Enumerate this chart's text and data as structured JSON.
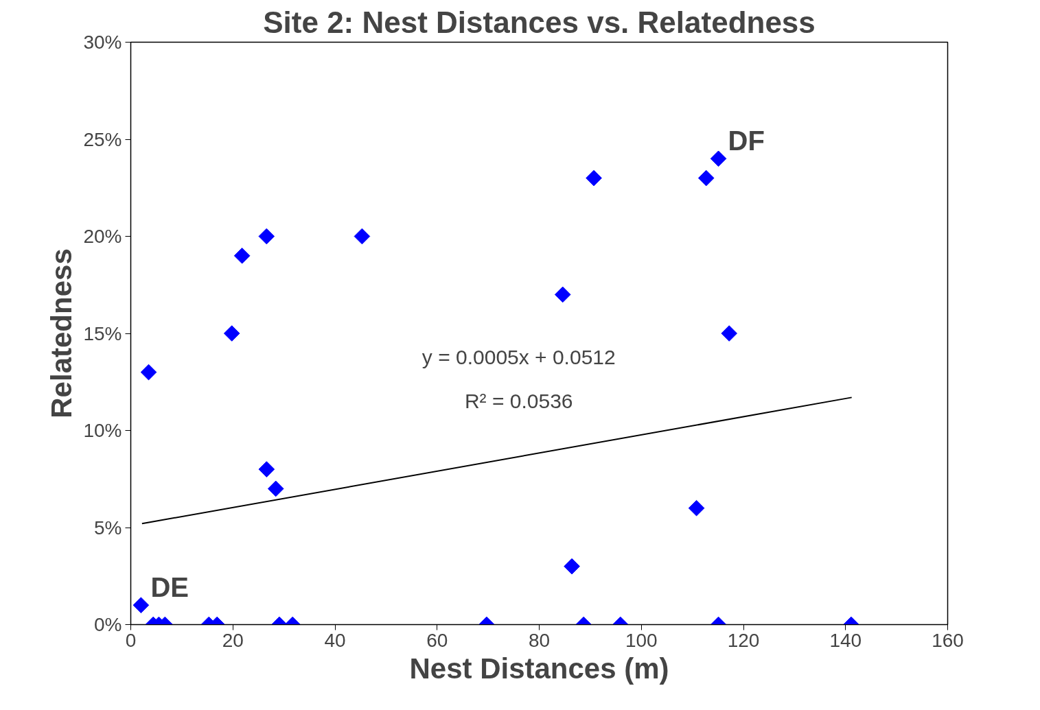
{
  "chart_data": {
    "type": "scatter",
    "title": "Site 2: Nest Distances vs. Relatedness",
    "xlabel": "Nest Distances (m)",
    "ylabel": "Relatedness",
    "grid": false,
    "xlim": [
      0,
      160
    ],
    "xticks": [
      0,
      20,
      40,
      60,
      80,
      100,
      120,
      140,
      160
    ],
    "ylim": [
      0,
      0.3
    ],
    "yticks": [
      {
        "value": 0,
        "label": "0%"
      },
      {
        "value": 0.05,
        "label": "5%"
      },
      {
        "value": 0.1,
        "label": "10%"
      },
      {
        "value": 0.15,
        "label": "15%"
      },
      {
        "value": 0.2,
        "label": "20%"
      },
      {
        "value": 0.25,
        "label": "25%"
      },
      {
        "value": 0.3,
        "label": "30%"
      }
    ],
    "series": [
      {
        "marker": "diamond",
        "color": "#0000ff",
        "x": [
          2.0,
          3.5,
          4.4,
          5.5,
          6.7,
          15.3,
          16.9,
          19.8,
          21.8,
          26.6,
          26.6,
          28.4,
          29.1,
          31.7,
          45.3,
          69.7,
          84.6,
          86.4,
          88.7,
          90.7,
          95.9,
          110.8,
          112.7,
          115.1,
          115.1,
          117.2,
          141.1
        ],
        "values": [
          0.01,
          0.13,
          0,
          0,
          0,
          0,
          0,
          0.15,
          0.19,
          0.2,
          0.08,
          0.07,
          0,
          0,
          0.2,
          0,
          0.17,
          0.03,
          0,
          0.23,
          0,
          0.06,
          0.23,
          0.24,
          0,
          0.15,
          0
        ]
      },
      {
        "type": "line",
        "color": "#000000",
        "x": [
          2.2,
          141.2
        ],
        "values": [
          0.052,
          0.117
        ]
      }
    ],
    "annotations": [
      "y = 0.0005x + 0.0512",
      "R² = 0.0536",
      {
        "text": "DE",
        "x": 2.0,
        "y": 0.01
      },
      {
        "text": "DF",
        "x": 115.1,
        "y": 0.24
      }
    ]
  }
}
